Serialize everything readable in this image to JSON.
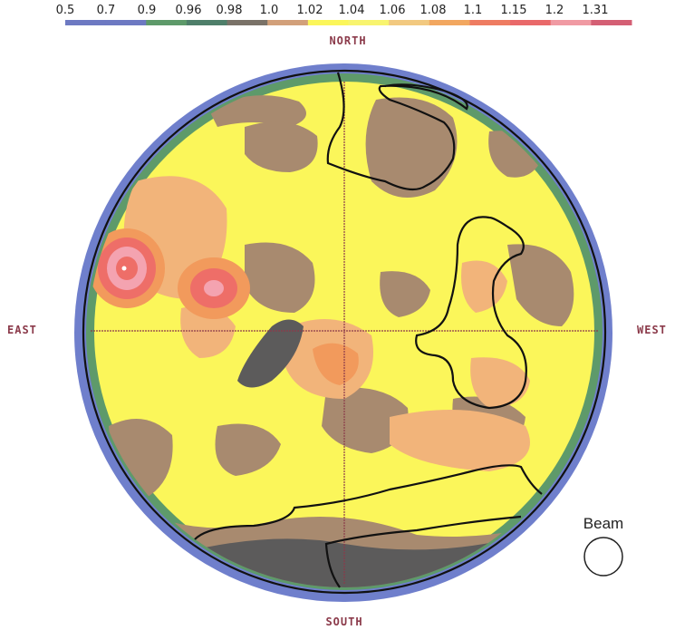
{
  "scale": {
    "ticks": [
      "0.5",
      "0.7",
      "0.9",
      "0.96",
      "0.98",
      "1.0",
      "1.02",
      "1.04",
      "1.06",
      "1.08",
      "1.1",
      "1.15",
      "1.2",
      "1.31"
    ],
    "colors": [
      "#6d79c2",
      "#6d79c2",
      "#5e9a6a",
      "#4f7f6a",
      "#7a7268",
      "#d2a07a",
      "#fbf65a",
      "#f8f46f",
      "#f2c980",
      "#f2a760",
      "#ee7c62",
      "#e9696a",
      "#f09aa3",
      "#d45f74"
    ]
  },
  "directions": {
    "north": "NORTH",
    "south": "SOUTH",
    "east": "EAST",
    "west": "WEST"
  },
  "beam_label": "Beam",
  "map_colors": {
    "outer_ring": "#6f7fcc",
    "green_ring": "#5e9a6a",
    "base": "#fbf65a",
    "tan": "#a88a6f",
    "dark": "#5c5b5b",
    "peach": "#f2b47a",
    "orange": "#f29a5c",
    "red": "#ee6e68",
    "pink": "#f4a3b0",
    "crosshair": "#8b3a4a",
    "outline": "#111111"
  }
}
